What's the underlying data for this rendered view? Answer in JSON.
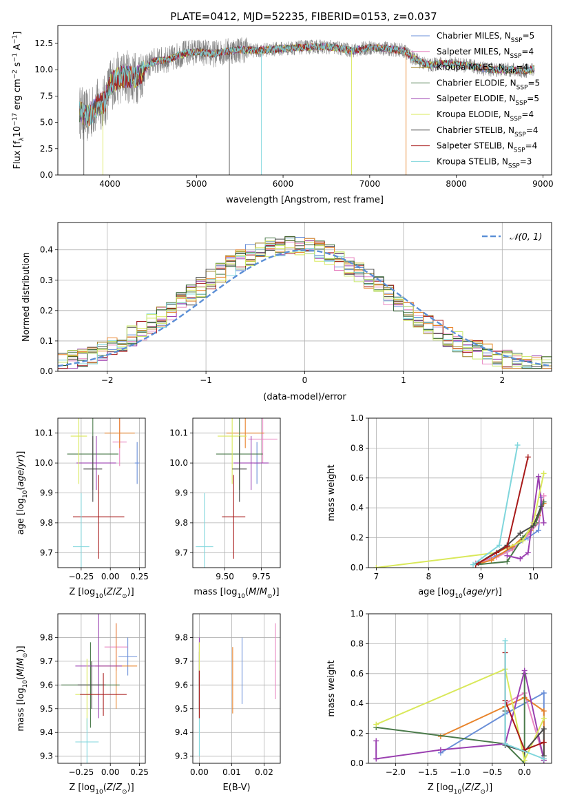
{
  "figure_title": "PLATE=0412, MJD=52235, FIBERID=0153, z=0.037",
  "model_colors": [
    "#6a8fd8",
    "#e887c2",
    "#9a7a1a",
    "#4a7a4a",
    "#9a3fb0",
    "#d9e85a",
    "#4a4a4a",
    "#a81a1a",
    "#7fd6dc"
  ],
  "extra_colors": [
    "#e8832a",
    "#2a5a2a",
    "#c7e86a"
  ],
  "legend": [
    {
      "label": "Chabrier MILES, N",
      "sub": "SSP",
      "suffix": "=5"
    },
    {
      "label": "Salpeter MILES, N",
      "sub": "SSP",
      "suffix": "=4"
    },
    {
      "label": "Kroupa MILES, N",
      "sub": "SSP",
      "suffix": "=4"
    },
    {
      "label": "Chabrier ELODIE, N",
      "sub": "SSP",
      "suffix": "=5"
    },
    {
      "label": "Salpeter ELODIE, N",
      "sub": "SSP",
      "suffix": "=5"
    },
    {
      "label": "Kroupa ELODIE, N",
      "sub": "SSP",
      "suffix": "=4"
    },
    {
      "label": "Chabrier STELIB, N",
      "sub": "SSP",
      "suffix": "=4"
    },
    {
      "label": "Salpeter STELIB, N",
      "sub": "SSP",
      "suffix": "=4"
    },
    {
      "label": "Kroupa STELIB, N",
      "sub": "SSP",
      "suffix": "=3"
    }
  ],
  "chart_data": [
    {
      "id": "spectrum",
      "type": "line",
      "xlabel": "wavelength [Angstrom, rest frame]",
      "ylabel": "Flux [f",
      "ylabel_sub": "λ",
      "ylabel_rest": "10",
      "ylabel_exp": "−17",
      "ylabel_tail": " erg cm",
      "ylabel_exp2": "−2",
      "ylabel_tail2": " s",
      "ylabel_exp3": "−1",
      "ylabel_tail3": " A",
      "ylabel_exp4": "−1",
      "ylabel_end": "]",
      "xlim": [
        3400,
        9100
      ],
      "ylim": [
        0,
        14.2
      ],
      "xticks": [
        4000,
        5000,
        6000,
        7000,
        8000,
        9000
      ],
      "yticks": [
        0.0,
        2.5,
        5.0,
        7.5,
        10.0,
        12.5
      ],
      "continuum": [
        [
          3650,
          6.0
        ],
        [
          3750,
          5.5
        ],
        [
          3850,
          6.6
        ],
        [
          3950,
          7.0
        ],
        [
          4000,
          8.6
        ],
        [
          4100,
          9.2
        ],
        [
          4200,
          9.4
        ],
        [
          4300,
          9.2
        ],
        [
          4400,
          10.0
        ],
        [
          4500,
          10.8
        ],
        [
          4600,
          10.9
        ],
        [
          4700,
          11.0
        ],
        [
          4800,
          11.4
        ],
        [
          4900,
          11.6
        ],
        [
          5000,
          11.7
        ],
        [
          5100,
          11.6
        ],
        [
          5200,
          11.5
        ],
        [
          5300,
          11.7
        ],
        [
          5400,
          11.8
        ],
        [
          5500,
          11.9
        ],
        [
          5600,
          11.9
        ],
        [
          5700,
          11.8
        ],
        [
          5800,
          11.9
        ],
        [
          6000,
          12.0
        ],
        [
          6200,
          12.1
        ],
        [
          6400,
          12.2
        ],
        [
          6600,
          12.1
        ],
        [
          6800,
          11.8
        ],
        [
          7000,
          12.1
        ],
        [
          7200,
          12.0
        ],
        [
          7400,
          11.8
        ],
        [
          7500,
          11.1
        ],
        [
          7600,
          10.7
        ],
        [
          7700,
          10.4
        ],
        [
          7800,
          10.6
        ],
        [
          8000,
          10.5
        ],
        [
          8200,
          10.3
        ],
        [
          8400,
          10.0
        ],
        [
          8600,
          10.0
        ],
        [
          8800,
          9.9
        ],
        [
          8900,
          10.1
        ]
      ]
    },
    {
      "id": "residuals",
      "type": "step",
      "xlabel": "(data-model)/error",
      "ylabel": "Normed distribution",
      "xlim": [
        -2.5,
        2.5
      ],
      "ylim": [
        0,
        0.49
      ],
      "xticks": [
        -2,
        -1,
        0,
        1,
        2
      ],
      "xtick_labels": [
        "−2",
        "−1",
        "0",
        "1",
        "2"
      ],
      "yticks": [
        0.0,
        0.1,
        0.2,
        0.3,
        0.4
      ],
      "gaussian_label": "𝒩(0, 1)"
    },
    {
      "id": "age_vs_Z",
      "type": "scatter",
      "xlabel": "Z [log",
      "xlabel_sub": "10",
      "xlabel_tail": "(Z/Z",
      "xlabel_sub2": "⊙",
      "xlabel_end": ")]",
      "ylabel": "age  [log",
      "ylabel_sub": "10",
      "ylabel_tail": "(age/yr)]",
      "xlim": [
        -0.45,
        0.3
      ],
      "ylim": [
        9.65,
        10.15
      ],
      "xticks": [
        -0.25,
        0.0,
        0.25
      ],
      "xtick_labels": [
        "−0.25",
        "0.00",
        "0.25"
      ],
      "yticks": [
        9.7,
        9.8,
        9.9,
        10.0,
        10.1
      ],
      "points": [
        {
          "x": 0.23,
          "y": 10.0,
          "xerr": 0.02,
          "yerr": 0.07,
          "c": 0
        },
        {
          "x": 0.08,
          "y": 10.07,
          "xerr": 0.06,
          "yerr": 0.08,
          "c": 1
        },
        {
          "x": 0.08,
          "y": 10.1,
          "xerr": 0.13,
          "yerr": 0.05,
          "c": 9
        },
        {
          "x": -0.15,
          "y": 10.03,
          "xerr": 0.22,
          "yerr": 0.12,
          "c": 3
        },
        {
          "x": -0.12,
          "y": 10.0,
          "xerr": 0.17,
          "yerr": 0.09,
          "c": 4
        },
        {
          "x": -0.27,
          "y": 10.09,
          "xerr": 0.07,
          "yerr": 0.16,
          "c": 5
        },
        {
          "x": -0.15,
          "y": 9.98,
          "xerr": 0.08,
          "yerr": 0.11,
          "c": 6
        },
        {
          "x": -0.1,
          "y": 9.82,
          "xerr": 0.22,
          "yerr": 0.14,
          "c": 7
        },
        {
          "x": -0.25,
          "y": 9.72,
          "xerr": 0.07,
          "yerr": 0.18,
          "c": 8
        }
      ]
    },
    {
      "id": "age_vs_mass",
      "type": "scatter",
      "xlabel": "mass [log",
      "xlabel_sub": "10",
      "xlabel_tail": "(M/M",
      "xlabel_sub2": "⊙",
      "xlabel_end": ")]",
      "xlim": [
        9.28,
        9.88
      ],
      "ylim": [
        9.65,
        10.15
      ],
      "xticks": [
        9.5,
        9.75
      ],
      "xtick_labels": [
        "9.50",
        "9.75"
      ],
      "yticks": [
        9.7,
        9.8,
        9.9,
        10.0,
        10.1
      ],
      "points": [
        {
          "x": 9.72,
          "y": 10.0,
          "xerr": 0.02,
          "yerr": 0.07,
          "c": 0
        },
        {
          "x": 9.76,
          "y": 10.08,
          "xerr": 0.1,
          "yerr": 0.08,
          "c": 1
        },
        {
          "x": 9.64,
          "y": 10.1,
          "xerr": 0.13,
          "yerr": 0.05,
          "c": 9
        },
        {
          "x": 9.6,
          "y": 10.03,
          "xerr": 0.16,
          "yerr": 0.12,
          "c": 3
        },
        {
          "x": 9.68,
          "y": 10.0,
          "xerr": 0.12,
          "yerr": 0.09,
          "c": 4
        },
        {
          "x": 9.55,
          "y": 10.09,
          "xerr": 0.1,
          "yerr": 0.16,
          "c": 5
        },
        {
          "x": 9.6,
          "y": 9.98,
          "xerr": 0.05,
          "yerr": 0.11,
          "c": 6
        },
        {
          "x": 9.56,
          "y": 9.82,
          "xerr": 0.08,
          "yerr": 0.14,
          "c": 7
        },
        {
          "x": 9.36,
          "y": 9.72,
          "xerr": 0.06,
          "yerr": 0.18,
          "c": 8
        }
      ]
    },
    {
      "id": "weight_vs_age",
      "type": "line",
      "xlabel": "age  [log",
      "xlabel_sub": "10",
      "xlabel_tail": "(age/yr)]",
      "ylabel": "mass weight",
      "xlim": [
        6.85,
        10.35
      ],
      "ylim": [
        0,
        1.0
      ],
      "xticks": [
        7,
        8,
        9,
        10
      ],
      "yticks": [
        0.0,
        0.2,
        0.4,
        0.6,
        0.8,
        1.0
      ],
      "series": [
        {
          "c": 0,
          "pts": [
            [
              8.9,
              0.02
            ],
            [
              9.3,
              0.08
            ],
            [
              9.6,
              0.13
            ],
            [
              9.9,
              0.2
            ],
            [
              10.1,
              0.25
            ],
            [
              10.15,
              0.47
            ]
          ]
        },
        {
          "c": 1,
          "pts": [
            [
              8.9,
              0.03
            ],
            [
              9.3,
              0.07
            ],
            [
              9.6,
              0.12
            ],
            [
              9.9,
              0.22
            ],
            [
              10.1,
              0.3
            ],
            [
              10.2,
              0.48
            ]
          ]
        },
        {
          "c": 9,
          "pts": [
            [
              8.9,
              0.02
            ],
            [
              9.2,
              0.05
            ],
            [
              9.6,
              0.14
            ],
            [
              9.95,
              0.25
            ],
            [
              10.1,
              0.35
            ],
            [
              10.2,
              0.43
            ]
          ]
        },
        {
          "c": 3,
          "pts": [
            [
              8.9,
              0.02
            ],
            [
              9.5,
              0.04
            ],
            [
              9.8,
              0.2
            ],
            [
              10.05,
              0.3
            ],
            [
              10.2,
              0.44
            ]
          ]
        },
        {
          "c": 4,
          "pts": [
            [
              9.5,
              0.08
            ],
            [
              9.75,
              0.06
            ],
            [
              9.9,
              0.1
            ],
            [
              10.1,
              0.61
            ],
            [
              10.2,
              0.3
            ]
          ]
        },
        {
          "c": 5,
          "pts": [
            [
              7.0,
              0.0
            ],
            [
              9.3,
              0.1
            ],
            [
              9.8,
              0.18
            ],
            [
              10.0,
              0.3
            ],
            [
              10.2,
              0.63
            ]
          ]
        },
        {
          "c": 6,
          "pts": [
            [
              8.95,
              0.03
            ],
            [
              9.5,
              0.15
            ],
            [
              9.75,
              0.23
            ],
            [
              10.0,
              0.28
            ],
            [
              10.15,
              0.41
            ]
          ]
        },
        {
          "c": 7,
          "pts": [
            [
              8.9,
              0.02
            ],
            [
              9.3,
              0.1
            ],
            [
              9.5,
              0.14
            ],
            [
              9.9,
              0.74
            ]
          ]
        },
        {
          "c": 8,
          "pts": [
            [
              8.85,
              0.02
            ],
            [
              9.35,
              0.15
            ],
            [
              9.7,
              0.82
            ]
          ]
        }
      ]
    },
    {
      "id": "mass_vs_Z",
      "type": "scatter",
      "xlabel": "Z [log",
      "xlabel_sub": "10",
      "xlabel_tail": "(Z/Z",
      "xlabel_sub2": "⊙",
      "xlabel_end": ")]",
      "ylabel": "mass [log",
      "ylabel_sub": "10",
      "ylabel_tail": "(M/M",
      "ylabel_sub2": "⊙",
      "ylabel_end": ")]",
      "xlim": [
        -0.45,
        0.3
      ],
      "ylim": [
        9.27,
        9.9
      ],
      "xticks": [
        -0.25,
        0.0,
        0.25
      ],
      "xtick_labels": [
        "−0.25",
        "0.00",
        "0.25"
      ],
      "yticks": [
        9.3,
        9.4,
        9.5,
        9.6,
        9.7,
        9.8
      ],
      "points": [
        {
          "x": 0.15,
          "y": 9.72,
          "xerr": 0.08,
          "yerr": 0.08,
          "c": 0
        },
        {
          "x": 0.05,
          "y": 9.76,
          "xerr": 0.1,
          "yerr": 0.1,
          "c": 1
        },
        {
          "x": 0.05,
          "y": 9.68,
          "xerr": 0.18,
          "yerr": 0.18,
          "c": 9
        },
        {
          "x": -0.17,
          "y": 9.6,
          "xerr": 0.25,
          "yerr": 0.18,
          "c": 3
        },
        {
          "x": -0.1,
          "y": 9.68,
          "xerr": 0.2,
          "yerr": 0.22,
          "c": 4
        },
        {
          "x": -0.2,
          "y": 9.56,
          "xerr": 0.1,
          "yerr": 0.15,
          "c": 5
        },
        {
          "x": -0.16,
          "y": 9.6,
          "xerr": 0.12,
          "yerr": 0.1,
          "c": 6
        },
        {
          "x": -0.06,
          "y": 9.56,
          "xerr": 0.2,
          "yerr": 0.09,
          "c": 7
        },
        {
          "x": -0.2,
          "y": 9.36,
          "xerr": 0.1,
          "yerr": 0.1,
          "c": 8
        }
      ]
    },
    {
      "id": "mass_vs_ebv",
      "type": "scatter",
      "xlabel": "E(B-V)",
      "xlim": [
        -0.002,
        0.025
      ],
      "ylim": [
        9.27,
        9.9
      ],
      "xticks": [
        0.0,
        0.01,
        0.02
      ],
      "xtick_labels": [
        "0.00",
        "0.01",
        "0.02"
      ],
      "yticks": [
        9.3,
        9.4,
        9.5,
        9.6,
        9.7,
        9.8
      ],
      "points": [
        {
          "x": 0.0132,
          "y": 9.66,
          "yerr": 0.14,
          "c": 0
        },
        {
          "x": 0.0235,
          "y": 9.7,
          "yerr": 0.16,
          "c": 1
        },
        {
          "x": 0.0103,
          "y": 9.62,
          "yerr": 0.14,
          "c": 9
        },
        {
          "x": 0.0,
          "y": 9.6,
          "yerr": 0.14,
          "c": 3
        },
        {
          "x": 0.0,
          "y": 9.7,
          "yerr": 0.1,
          "c": 4
        },
        {
          "x": 0.0,
          "y": 9.68,
          "yerr": 0.1,
          "c": 5
        },
        {
          "x": 0.0,
          "y": 9.58,
          "yerr": 0.08,
          "c": 6
        },
        {
          "x": 0.0,
          "y": 9.56,
          "yerr": 0.1,
          "c": 7
        },
        {
          "x": 0.0,
          "y": 9.38,
          "yerr": 0.08,
          "c": 8
        }
      ]
    },
    {
      "id": "weight_vs_Z",
      "type": "line",
      "xlabel": "Z [log",
      "xlabel_sub": "10",
      "xlabel_tail": "(Z/Z",
      "xlabel_sub2": "⊙",
      "xlabel_end": ")]",
      "ylabel": "mass weight",
      "xlim": [
        -2.42,
        0.42
      ],
      "ylim": [
        0,
        1.0
      ],
      "xticks": [
        -2.0,
        -1.5,
        -1.0,
        -0.5,
        0.0
      ],
      "xtick_labels": [
        "−2.0",
        "−1.5",
        "−1.0",
        "−0.5",
        "0.0"
      ],
      "yticks": [
        0.0,
        0.2,
        0.4,
        0.6,
        0.8,
        1.0
      ],
      "series": [
        {
          "c": 0,
          "pts": [
            [
              -1.3,
              0.07
            ],
            [
              -0.3,
              0.33
            ],
            [
              0.3,
              0.47
            ],
            [
              0.3,
              0.02
            ]
          ]
        },
        {
          "c": 1,
          "pts": [
            [
              -0.3,
              0.4
            ],
            [
              0.0,
              0.47
            ],
            [
              0.3,
              0.03
            ]
          ]
        },
        {
          "c": 9,
          "pts": [
            [
              -1.3,
              0.18
            ],
            [
              -0.3,
              0.38
            ],
            [
              0.0,
              0.44
            ],
            [
              0.3,
              0.35
            ],
            [
              0.3,
              0.02
            ]
          ]
        },
        {
          "c": 3,
          "pts": [
            [
              -2.3,
              0.24
            ],
            [
              -0.3,
              0.13
            ],
            [
              0.0,
              0.0
            ],
            [
              0.0,
              0.6
            ]
          ]
        },
        {
          "c": 4,
          "pts": [
            [
              -2.3,
              0.15
            ],
            [
              -2.3,
              0.03
            ],
            [
              -1.3,
              0.09
            ],
            [
              -0.3,
              0.13
            ],
            [
              0.0,
              0.62
            ],
            [
              0.3,
              0.02
            ]
          ]
        },
        {
          "c": 5,
          "pts": [
            [
              -2.3,
              0.26
            ],
            [
              -0.3,
              0.63
            ],
            [
              0.0,
              0.02
            ],
            [
              0.3,
              0.3
            ]
          ]
        },
        {
          "c": 6,
          "pts": [
            [
              -0.3,
              0.35
            ],
            [
              -0.3,
              0.12
            ],
            [
              0.0,
              0.08
            ],
            [
              0.3,
              0.23
            ],
            [
              0.3,
              0.05
            ]
          ]
        },
        {
          "c": 7,
          "pts": [
            [
              -0.3,
              0.74
            ],
            [
              -0.3,
              0.42
            ],
            [
              0.0,
              0.09
            ],
            [
              0.3,
              0.14
            ]
          ]
        },
        {
          "c": 8,
          "pts": [
            [
              -0.3,
              0.82
            ],
            [
              -0.3,
              0.13
            ],
            [
              0.3,
              0.03
            ]
          ]
        }
      ]
    }
  ]
}
